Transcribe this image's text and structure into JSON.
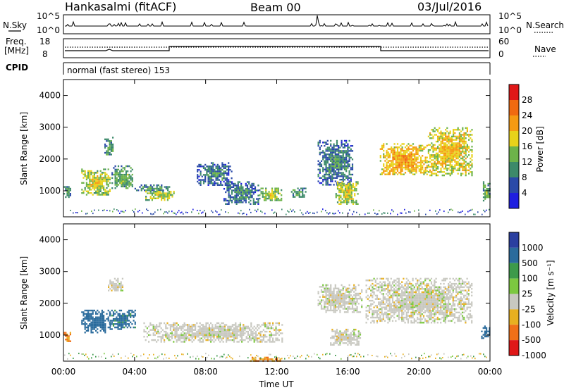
{
  "header": {
    "station": "Hankasalmi (fitACF)",
    "beam": "Beam 00",
    "date": "03/Jul/2016"
  },
  "noise_panel": {
    "left_label": "N.Sky",
    "right_label": "N.Search",
    "left_ticks": [
      "10^5",
      "10^0"
    ],
    "right_ticks": [
      "10^5",
      "10^0"
    ]
  },
  "freq_panel": {
    "left_label_1": "Freq.",
    "left_label_2": "[MHz]",
    "right_label": "Nave",
    "left_ticks": [
      "18",
      "8"
    ],
    "right_ticks": [
      "60",
      "0"
    ]
  },
  "cpid_panel": {
    "label": "CPID",
    "text": "normal (fast stereo) 153"
  },
  "power_panel": {
    "y_title": "Slant Range [km]",
    "colorbar_title": "Power [dB]",
    "colorbar_ticks": [
      "28",
      "24",
      "20",
      "16",
      "12",
      "8",
      "4"
    ]
  },
  "velocity_panel": {
    "y_title": "Slant Range [km]",
    "colorbar_title": "Velocity [m s⁻¹]",
    "colorbar_ticks": [
      "1000",
      "500",
      "100",
      "25",
      "-25",
      "-100",
      "-500",
      "-1000"
    ]
  },
  "x_axis": {
    "title": "Time UT",
    "ticks": [
      "00:00",
      "04:00",
      "08:00",
      "12:00",
      "16:00",
      "20:00",
      "00:00"
    ]
  },
  "colors": {
    "power_scale": [
      "#1f1fe0",
      "#2a4aa8",
      "#3d8a6a",
      "#6db34a",
      "#e8d21a",
      "#f59a12",
      "#f06a10",
      "#e01818"
    ],
    "velocity_scale": [
      "#2a3fa0",
      "#2a6b9c",
      "#3d9a4a",
      "#7cc840",
      "#c8c8c0",
      "#e8b020",
      "#f07018",
      "#e01818"
    ]
  },
  "chart_data": [
    {
      "type": "heatmap",
      "title": "",
      "xlabel": "Time UT",
      "ylabel": "Slant Range [km]",
      "xlim_hours": [
        0,
        24
      ],
      "ylim_km": [
        180,
        4500
      ],
      "y_ticks": [
        1000,
        2000,
        3000,
        4000
      ],
      "colorbar": "Power [dB]",
      "colorbar_range": [
        0,
        32
      ],
      "echo_regions": [
        {
          "t_start": 0.0,
          "t_end": 0.4,
          "r_min": 800,
          "r_max": 1200,
          "value_db": 8
        },
        {
          "t_start": 1.0,
          "t_end": 2.6,
          "r_min": 900,
          "r_max": 1700,
          "value_db": 14
        },
        {
          "t_start": 2.3,
          "t_end": 2.8,
          "r_min": 2100,
          "r_max": 2700,
          "value_db": 8
        },
        {
          "t_start": 2.7,
          "t_end": 3.9,
          "r_min": 1100,
          "r_max": 1800,
          "value_db": 10
        },
        {
          "t_start": 4.0,
          "t_end": 6.0,
          "r_min": 1000,
          "r_max": 1200,
          "value_db": 8
        },
        {
          "t_start": 4.6,
          "t_end": 6.2,
          "r_min": 700,
          "r_max": 1000,
          "value_db": 14
        },
        {
          "t_start": 7.5,
          "t_end": 9.5,
          "r_min": 1200,
          "r_max": 1900,
          "value_db": 6
        },
        {
          "t_start": 9.0,
          "t_end": 11.0,
          "r_min": 600,
          "r_max": 1300,
          "value_db": 6
        },
        {
          "t_start": 11.0,
          "t_end": 12.3,
          "r_min": 700,
          "r_max": 1100,
          "value_db": 12
        },
        {
          "t_start": 12.8,
          "t_end": 13.6,
          "r_min": 800,
          "r_max": 1100,
          "value_db": 8
        },
        {
          "t_start": 14.3,
          "t_end": 16.3,
          "r_min": 1200,
          "r_max": 2600,
          "value_db": 6
        },
        {
          "t_start": 15.3,
          "t_end": 16.6,
          "r_min": 600,
          "r_max": 1300,
          "value_db": 14
        },
        {
          "t_start": 17.8,
          "t_end": 20.5,
          "r_min": 1500,
          "r_max": 2500,
          "value_db": 18
        },
        {
          "t_start": 20.5,
          "t_end": 23.0,
          "r_min": 1500,
          "r_max": 3000,
          "value_db": 16
        },
        {
          "t_start": 23.6,
          "t_end": 24.0,
          "r_min": 700,
          "r_max": 1300,
          "value_db": 10
        }
      ]
    },
    {
      "type": "heatmap",
      "title": "",
      "xlabel": "Time UT",
      "ylabel": "Slant Range [km]",
      "xlim_hours": [
        0,
        24
      ],
      "ylim_km": [
        180,
        4500
      ],
      "y_ticks": [
        1000,
        2000,
        3000,
        4000
      ],
      "colorbar": "Velocity [m s⁻¹]",
      "colorbar_levels": [
        -1000,
        -500,
        -100,
        -25,
        25,
        100,
        500,
        1000
      ],
      "echo_regions": [
        {
          "t_start": 0.0,
          "t_end": 0.4,
          "r_min": 800,
          "r_max": 1100,
          "value_ms": -150
        },
        {
          "t_start": 1.0,
          "t_end": 2.6,
          "r_min": 1100,
          "r_max": 1800,
          "value_ms": 300
        },
        {
          "t_start": 2.6,
          "t_end": 4.0,
          "r_min": 1200,
          "r_max": 1800,
          "value_ms": 200
        },
        {
          "t_start": 2.5,
          "t_end": 3.3,
          "r_min": 2400,
          "r_max": 2800,
          "value_ms": 0
        },
        {
          "t_start": 4.5,
          "t_end": 12.3,
          "r_min": 800,
          "r_max": 1400,
          "value_ms": 0
        },
        {
          "t_start": 10.5,
          "t_end": 12.2,
          "r_min": 200,
          "r_max": 320,
          "value_ms": -120
        },
        {
          "t_start": 14.3,
          "t_end": 16.8,
          "r_min": 1700,
          "r_max": 2600,
          "value_ms": 0
        },
        {
          "t_start": 15.0,
          "t_end": 16.7,
          "r_min": 700,
          "r_max": 1200,
          "value_ms": 0
        },
        {
          "t_start": 17.0,
          "t_end": 23.0,
          "r_min": 1400,
          "r_max": 2800,
          "value_ms": 0
        },
        {
          "t_start": 23.5,
          "t_end": 24.0,
          "r_min": 900,
          "r_max": 1300,
          "value_ms": 300
        }
      ]
    }
  ]
}
